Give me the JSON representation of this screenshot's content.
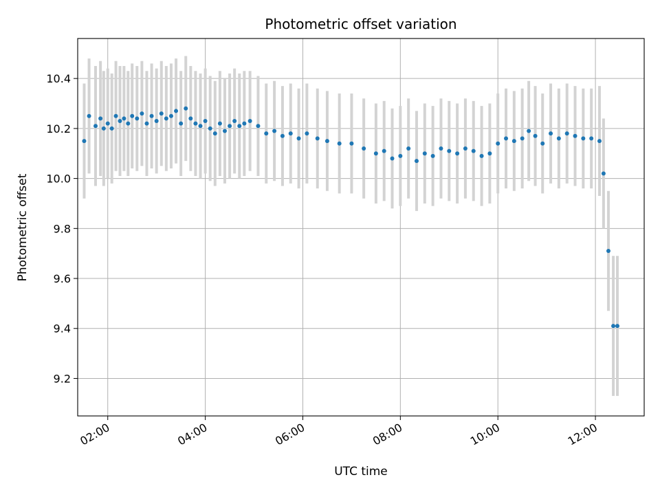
{
  "chart_data": {
    "type": "scatter",
    "title": "Photometric offset variation",
    "xlabel": "UTC time",
    "ylabel": "Photometric offset",
    "x_axis_kind": "time",
    "x_range": [
      "01:23",
      "13:00"
    ],
    "xticks": [
      "02:00",
      "04:00",
      "06:00",
      "08:00",
      "10:00",
      "12:00"
    ],
    "ylim": [
      9.05,
      10.56
    ],
    "yticks": [
      "9.2",
      "9.4",
      "9.6",
      "9.8",
      "10.0",
      "10.2",
      "10.4"
    ],
    "grid": true,
    "legend": "none",
    "marker_color": "#1f77b4",
    "errorbar_color": "#d3d3d3",
    "series": [
      {
        "x": [
          "01:31",
          "01:37",
          "01:45",
          "01:51",
          "01:55",
          "02:00",
          "02:05",
          "02:10",
          "02:15",
          "02:20",
          "02:25",
          "02:30",
          "02:36",
          "02:42",
          "02:48",
          "02:54",
          "03:00",
          "03:06",
          "03:12",
          "03:18",
          "03:24",
          "03:30",
          "03:36",
          "03:42",
          "03:48",
          "03:54",
          "04:00",
          "04:06",
          "04:12",
          "04:18",
          "04:24",
          "04:30",
          "04:36",
          "04:42",
          "04:48",
          "04:55",
          "05:05",
          "05:15",
          "05:25",
          "05:35",
          "05:45",
          "05:55",
          "06:05",
          "06:18",
          "06:30",
          "06:45",
          "07:00",
          "07:15",
          "07:30",
          "07:40",
          "07:50",
          "08:00",
          "08:10",
          "08:20",
          "08:30",
          "08:40",
          "08:50",
          "09:00",
          "09:10",
          "09:20",
          "09:30",
          "09:40",
          "09:50",
          "10:00",
          "10:10",
          "10:20",
          "10:30",
          "10:38",
          "10:46",
          "10:55",
          "11:05",
          "11:15",
          "11:25",
          "11:35",
          "11:45",
          "11:55",
          "12:05",
          "12:10",
          "12:16",
          "12:22",
          "12:27"
        ],
        "y": [
          10.15,
          10.25,
          10.21,
          10.24,
          10.2,
          10.22,
          10.2,
          10.25,
          10.23,
          10.24,
          10.22,
          10.25,
          10.24,
          10.26,
          10.22,
          10.25,
          10.23,
          10.26,
          10.24,
          10.25,
          10.27,
          10.22,
          10.28,
          10.24,
          10.22,
          10.21,
          10.23,
          10.2,
          10.18,
          10.22,
          10.19,
          10.21,
          10.23,
          10.21,
          10.22,
          10.23,
          10.21,
          10.18,
          10.19,
          10.17,
          10.18,
          10.16,
          10.18,
          10.16,
          10.15,
          10.14,
          10.14,
          10.12,
          10.1,
          10.11,
          10.08,
          10.09,
          10.12,
          10.07,
          10.1,
          10.09,
          10.12,
          10.11,
          10.1,
          10.12,
          10.11,
          10.09,
          10.1,
          10.14,
          10.16,
          10.15,
          10.16,
          10.19,
          10.17,
          10.14,
          10.18,
          10.16,
          10.18,
          10.17,
          10.16,
          10.16,
          10.15,
          10.02,
          9.71,
          9.41,
          9.41
        ],
        "err": [
          0.23,
          0.23,
          0.24,
          0.23,
          0.23,
          0.22,
          0.22,
          0.22,
          0.22,
          0.21,
          0.21,
          0.21,
          0.21,
          0.21,
          0.21,
          0.21,
          0.21,
          0.21,
          0.21,
          0.21,
          0.21,
          0.21,
          0.21,
          0.21,
          0.21,
          0.21,
          0.21,
          0.21,
          0.21,
          0.21,
          0.21,
          0.21,
          0.21,
          0.21,
          0.21,
          0.2,
          0.2,
          0.2,
          0.2,
          0.2,
          0.2,
          0.2,
          0.2,
          0.2,
          0.2,
          0.2,
          0.2,
          0.2,
          0.2,
          0.2,
          0.2,
          0.2,
          0.2,
          0.2,
          0.2,
          0.2,
          0.2,
          0.2,
          0.2,
          0.2,
          0.2,
          0.2,
          0.2,
          0.2,
          0.2,
          0.2,
          0.2,
          0.2,
          0.2,
          0.2,
          0.2,
          0.2,
          0.2,
          0.2,
          0.2,
          0.2,
          0.22,
          0.22,
          0.24,
          0.28,
          0.28
        ]
      }
    ]
  }
}
